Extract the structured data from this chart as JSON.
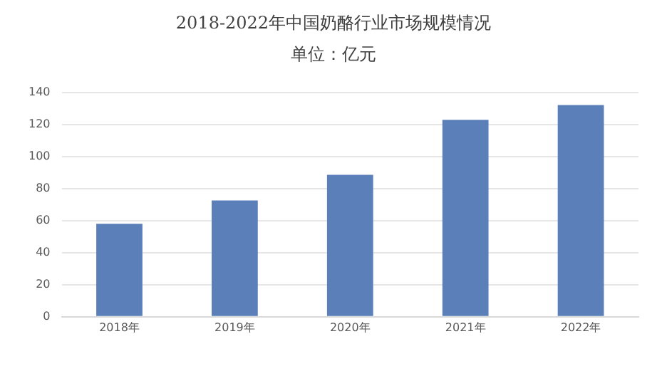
{
  "chart_data": {
    "type": "bar",
    "title": "2018-2022年中国奶酪行业市场规模情况",
    "subtitle": "单位：亿元",
    "categories": [
      "2018年",
      "2019年",
      "2020年",
      "2021年",
      "2022年"
    ],
    "values": [
      58,
      72.5,
      88.5,
      122.8,
      132
    ],
    "color": "#5b7fb8",
    "ylim": [
      0,
      140
    ],
    "yticks": [
      0,
      20,
      40,
      60,
      80,
      100,
      120,
      140
    ],
    "grid": "y"
  }
}
